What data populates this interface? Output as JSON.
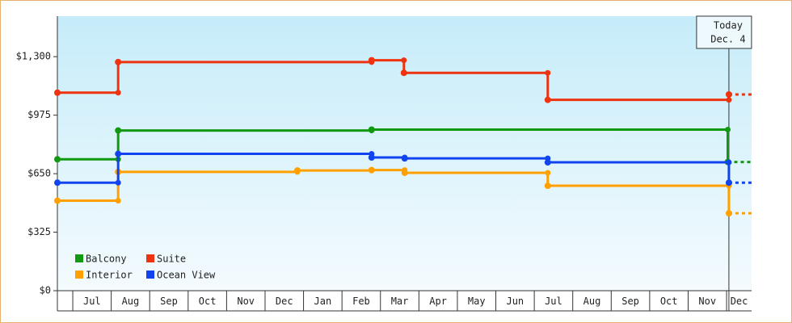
{
  "chart_data": {
    "type": "step",
    "categories": [
      "Jul",
      "Aug",
      "Sep",
      "Oct",
      "Nov",
      "Dec",
      "Jan",
      "Feb",
      "Mar",
      "Apr",
      "May",
      "Jun",
      "Jul",
      "Aug",
      "Sep",
      "Oct",
      "Nov",
      "Dec"
    ],
    "xlim": [
      -0.4,
      17.65
    ],
    "ylim": [
      0,
      1525
    ],
    "yticks": [
      {
        "value": 0,
        "label": "$0"
      },
      {
        "value": 325,
        "label": "$325"
      },
      {
        "value": 650,
        "label": "$650"
      },
      {
        "value": 975,
        "label": "$975"
      },
      {
        "value": 1300,
        "label": "$1,300"
      }
    ],
    "today": {
      "x": 17.06,
      "label": [
        "Today",
        "Dec. 4"
      ]
    },
    "series": [
      {
        "name": "Balcony",
        "color": "#119911",
        "x": [
          -0.4,
          1.18,
          7.77,
          17.03
        ],
        "values": [
          730,
          890,
          895,
          715
        ]
      },
      {
        "name": "Suite",
        "color": "#ee3311",
        "x": [
          -0.4,
          1.18,
          7.77,
          8.61,
          12.35,
          17.06
        ],
        "values": [
          1100,
          1270,
          1280,
          1210,
          1060,
          1090
        ]
      },
      {
        "name": "Interior",
        "color": "#ffa000",
        "x": [
          -0.4,
          1.18,
          5.84,
          7.77,
          8.63,
          12.35,
          17.06
        ],
        "values": [
          500,
          660,
          668,
          670,
          655,
          583,
          430
        ]
      },
      {
        "name": "Ocean View",
        "color": "#1144ee",
        "x": [
          -0.4,
          1.18,
          7.77,
          8.63,
          12.35,
          17.06
        ],
        "values": [
          600,
          760,
          740,
          735,
          713,
          600
        ]
      }
    ]
  }
}
